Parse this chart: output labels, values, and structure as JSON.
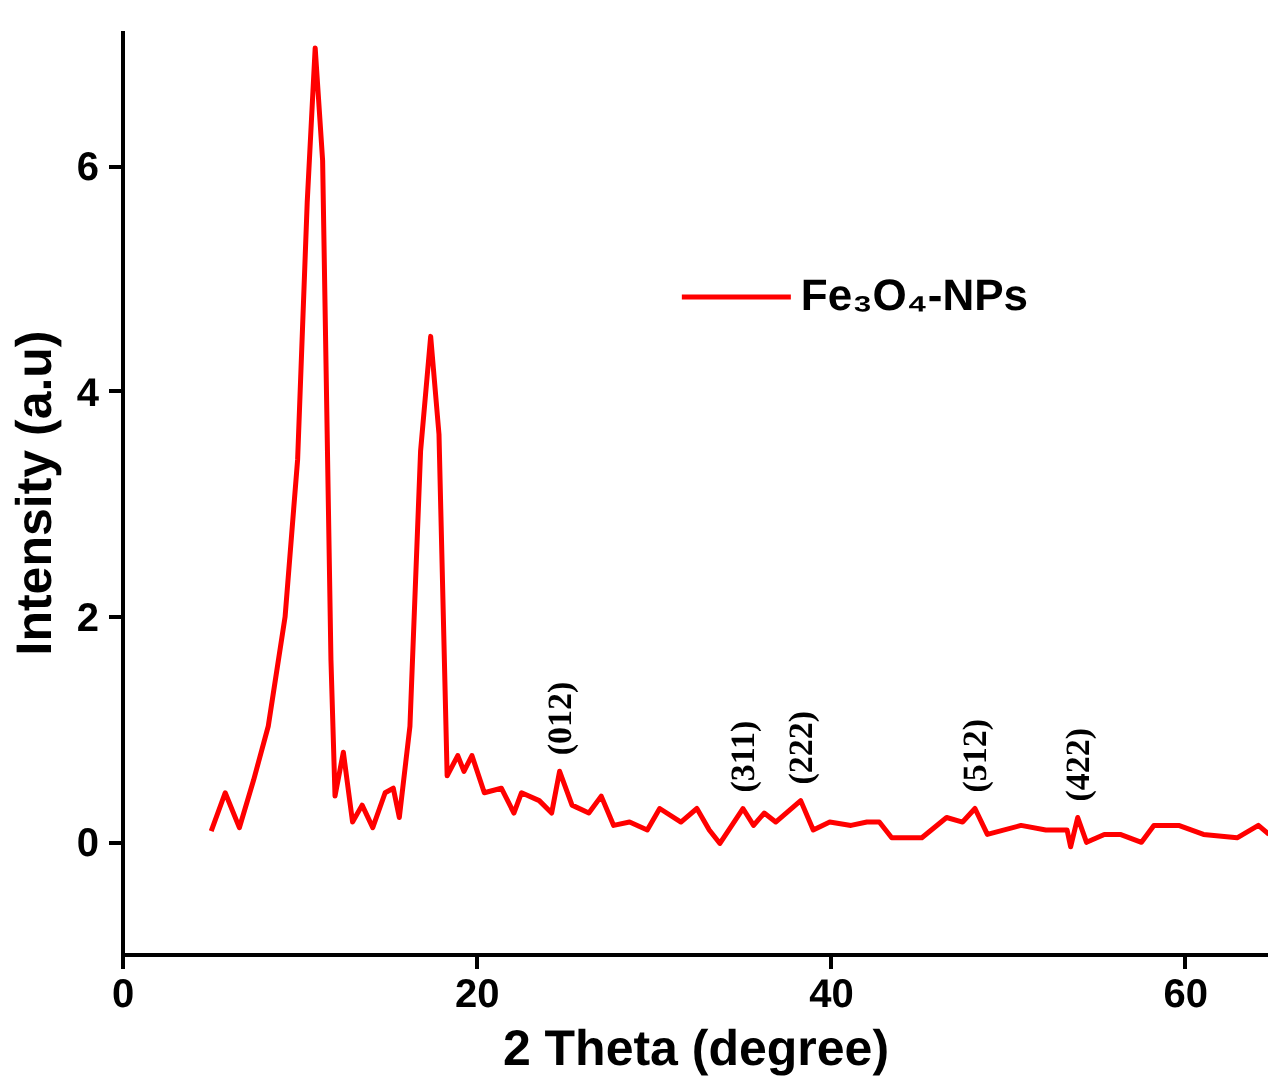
{
  "chart_data": {
    "type": "line",
    "xlabel": "2 Theta (degree)",
    "ylabel": "Intensity (a.u)",
    "xlim": [
      0,
      64.7
    ],
    "ylim": [
      -1,
      7.2
    ],
    "xticks": [
      0,
      20,
      40,
      60
    ],
    "yticks": [
      0,
      2,
      4,
      6
    ],
    "grid": false,
    "legend": "top right",
    "line_style": "solid",
    "marker": "none",
    "series": [
      {
        "name": "Fe₃O₄-NPs",
        "color": "#ff0000",
        "x": [
          4.98,
          5.77,
          6.57,
          7.37,
          8.2,
          9.15,
          9.86,
          10.4,
          10.85,
          11.27,
          11.74,
          11.97,
          12.44,
          12.96,
          13.5,
          14.1,
          14.8,
          15.26,
          15.6,
          16.2,
          16.8,
          17.37,
          17.84,
          18.3,
          18.9,
          19.25,
          19.7,
          20.4,
          21.36,
          22.07,
          22.5,
          23.5,
          24.2,
          24.65,
          25.35,
          26.3,
          27.0,
          27.7,
          28.6,
          29.6,
          30.3,
          31.5,
          32.4,
          33.1,
          33.7,
          35.0,
          35.6,
          36.2,
          36.85,
          38.26,
          38.97,
          39.9,
          41.1,
          42.0,
          42.7,
          43.4,
          45.1,
          46.5,
          47.4,
          48.1,
          48.8,
          50.7,
          52.1,
          53.3,
          53.5,
          53.9,
          54.4,
          55.4,
          56.3,
          57.5,
          58.2,
          59.6,
          61.0,
          62.9,
          64.1,
          64.7
        ],
        "values": [
          0.1,
          0.44,
          0.13,
          0.55,
          1.03,
          2.0,
          3.4,
          5.68,
          7.05,
          6.05,
          1.62,
          0.41,
          0.8,
          0.18,
          0.33,
          0.13,
          0.44,
          0.48,
          0.22,
          1.03,
          3.47,
          4.49,
          3.62,
          0.59,
          0.77,
          0.63,
          0.77,
          0.44,
          0.48,
          0.26,
          0.44,
          0.37,
          0.26,
          0.63,
          0.33,
          0.26,
          0.41,
          0.15,
          0.18,
          0.11,
          0.3,
          0.18,
          0.3,
          0.11,
          -0.01,
          0.3,
          0.15,
          0.26,
          0.18,
          0.37,
          0.11,
          0.18,
          0.15,
          0.18,
          0.18,
          0.04,
          0.04,
          0.22,
          0.18,
          0.3,
          0.07,
          0.15,
          0.11,
          0.11,
          -0.04,
          0.22,
          0.0,
          0.07,
          0.07,
          0.0,
          0.15,
          0.15,
          0.07,
          0.04,
          0.15,
          0.07
        ]
      }
    ],
    "annotations": [
      {
        "text": "(012)",
        "x": 24.65,
        "y": 0.63
      },
      {
        "text": "(311)",
        "x": 35.0,
        "y": 0.3
      },
      {
        "text": "(222)",
        "x": 38.26,
        "y": 0.37
      },
      {
        "text": "(512)",
        "x": 48.1,
        "y": 0.3
      },
      {
        "text": "(422)",
        "x": 53.9,
        "y": 0.22
      }
    ]
  }
}
